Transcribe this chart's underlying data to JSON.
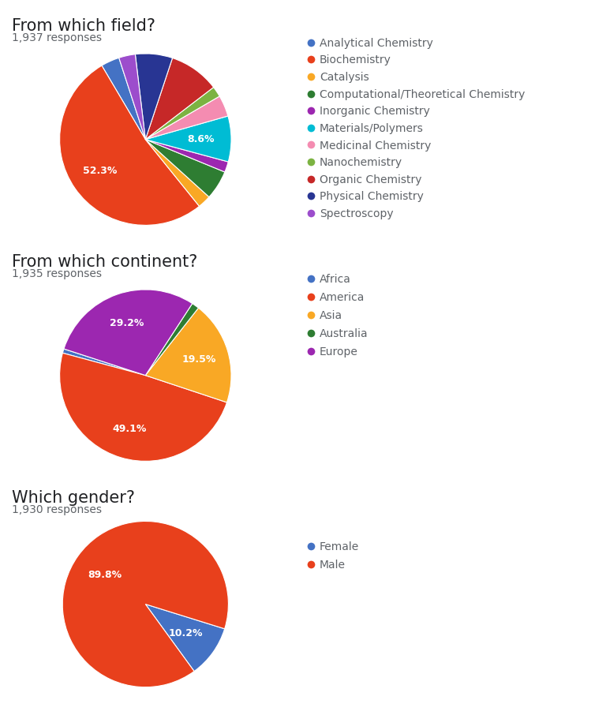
{
  "chart1": {
    "title": "From which field?",
    "responses": "1,937 responses",
    "labels": [
      "Analytical Chemistry",
      "Biochemistry",
      "Catalysis",
      "Computational/Theoretical Chemistry",
      "Inorganic Chemistry",
      "Materials/Polymers",
      "Medicinal Chemistry",
      "Nanochemistry",
      "Organic Chemistry",
      "Physical Chemistry",
      "Spectroscopy"
    ],
    "values": [
      3.5,
      52.3,
      2.5,
      5.5,
      2.0,
      8.6,
      4.0,
      2.0,
      9.5,
      7.0,
      3.1
    ],
    "colors": [
      "#4472C4",
      "#E8401C",
      "#F9A825",
      "#2E7D32",
      "#9C27B0",
      "#00BCD4",
      "#F48CB1",
      "#7CB342",
      "#C62828",
      "#283593",
      "#9C4DCC"
    ],
    "show_pct": [
      "Biochemistry",
      "Materials/Polymers"
    ],
    "startangle": 108
  },
  "chart2": {
    "title": "From which continent?",
    "responses": "1,935 responses",
    "labels": [
      "Africa",
      "America",
      "Asia",
      "Australia",
      "Europe"
    ],
    "values": [
      0.8,
      49.1,
      19.5,
      1.4,
      29.2
    ],
    "colors": [
      "#4472C4",
      "#E8401C",
      "#F9A825",
      "#2E7D32",
      "#9C27B0"
    ],
    "show_pct": [
      "America",
      "Asia",
      "Europe"
    ],
    "startangle": 162
  },
  "chart3": {
    "title": "Which gender?",
    "responses": "1,930 responses",
    "labels": [
      "Female",
      "Male"
    ],
    "values": [
      10.2,
      89.8
    ],
    "colors": [
      "#4472C4",
      "#E8401C"
    ],
    "show_pct": [
      "Female",
      "Male"
    ],
    "startangle": -54
  },
  "bg_color": "#ffffff",
  "text_color": "#5f6368",
  "title_fontsize": 15,
  "response_fontsize": 10,
  "legend_fontsize": 10,
  "pct_fontsize": 9
}
